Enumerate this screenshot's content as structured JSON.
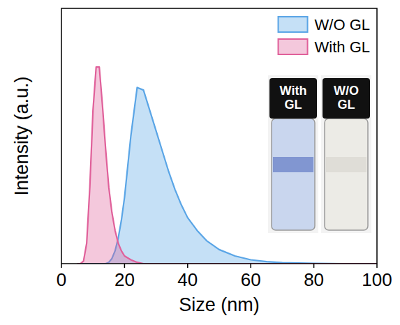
{
  "chart_data": {
    "type": "area",
    "x_label": "Size (nm)",
    "y_label": "Intensity (a.u.)",
    "x": [
      5,
      6,
      7,
      8,
      9,
      10,
      11,
      12,
      13,
      14,
      15,
      16,
      17,
      18,
      19,
      20,
      22,
      24,
      26,
      28,
      30,
      32,
      34,
      36,
      38,
      40,
      43,
      46,
      50,
      55,
      60,
      65,
      70,
      80,
      90,
      100
    ],
    "series": [
      {
        "name": "W/O GL",
        "color": "#5aa5e6",
        "values": [
          0,
          0,
          0,
          0,
          0,
          0,
          0,
          0,
          0,
          0,
          0.005,
          0.02,
          0.05,
          0.1,
          0.17,
          0.26,
          0.5,
          0.69,
          0.68,
          0.6,
          0.52,
          0.44,
          0.36,
          0.29,
          0.23,
          0.18,
          0.13,
          0.09,
          0.055,
          0.03,
          0.015,
          0.008,
          0.004,
          0.001,
          0,
          0
        ]
      },
      {
        "name": "With GL",
        "color": "#e0609a",
        "values": [
          0,
          0,
          0.01,
          0.08,
          0.3,
          0.6,
          0.77,
          0.77,
          0.62,
          0.45,
          0.3,
          0.2,
          0.13,
          0.08,
          0.05,
          0.03,
          0.015,
          0.005,
          0,
          0,
          0,
          0,
          0,
          0,
          0,
          0,
          0,
          0,
          0,
          0,
          0,
          0,
          0,
          0,
          0,
          0
        ]
      }
    ],
    "annotations": [
      "With GL",
      "W/O GL"
    ],
    "xlim": [
      0,
      100
    ],
    "xticks": [
      0,
      20,
      40,
      60,
      80,
      100
    ],
    "ylim": [
      0,
      1
    ],
    "tick_labels": "x",
    "legend": "upper right",
    "grid": false
  }
}
